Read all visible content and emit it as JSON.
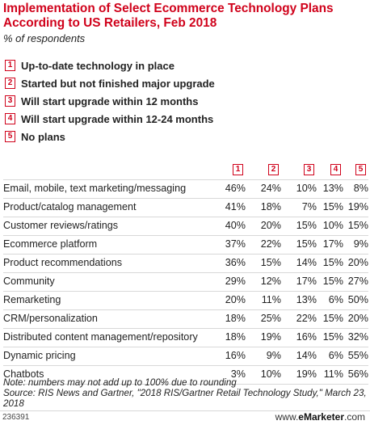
{
  "title": "Implementation of Select Ecommerce Technology Plans According to US Retailers, Feb 2018",
  "subtitle": "% of respondents",
  "legend": [
    {
      "num": "1",
      "label": "Up-to-date technology in place"
    },
    {
      "num": "2",
      "label": "Started but not finished major upgrade"
    },
    {
      "num": "3",
      "label": "Will start upgrade within 12 months"
    },
    {
      "num": "4",
      "label": "Will start upgrade within 12-24 months"
    },
    {
      "num": "5",
      "label": "No plans"
    }
  ],
  "chart_data": {
    "type": "table",
    "columns": [
      "1",
      "2",
      "3",
      "4",
      "5"
    ],
    "rows": [
      {
        "label": "Email, mobile, text marketing/messaging",
        "values": [
          "46%",
          "24%",
          "10%",
          "13%",
          "8%"
        ]
      },
      {
        "label": "Product/catalog management",
        "values": [
          "41%",
          "18%",
          "7%",
          "15%",
          "19%"
        ]
      },
      {
        "label": "Customer reviews/ratings",
        "values": [
          "40%",
          "20%",
          "15%",
          "10%",
          "15%"
        ]
      },
      {
        "label": "Ecommerce platform",
        "values": [
          "37%",
          "22%",
          "15%",
          "17%",
          "9%"
        ]
      },
      {
        "label": "Product recommendations",
        "values": [
          "36%",
          "15%",
          "14%",
          "15%",
          "20%"
        ]
      },
      {
        "label": "Community",
        "values": [
          "29%",
          "12%",
          "17%",
          "15%",
          "27%"
        ]
      },
      {
        "label": "Remarketing",
        "values": [
          "20%",
          "11%",
          "13%",
          "6%",
          "50%"
        ]
      },
      {
        "label": "CRM/personalization",
        "values": [
          "18%",
          "25%",
          "22%",
          "15%",
          "20%"
        ]
      },
      {
        "label": "Distributed content management/repository",
        "values": [
          "18%",
          "19%",
          "16%",
          "15%",
          "32%"
        ]
      },
      {
        "label": "Dynamic pricing",
        "values": [
          "16%",
          "9%",
          "14%",
          "6%",
          "55%"
        ]
      },
      {
        "label": "Chatbots",
        "values": [
          "3%",
          "10%",
          "19%",
          "11%",
          "56%"
        ]
      }
    ]
  },
  "note": "Note: numbers may not add up to 100% due to rounding",
  "source": "Source: RIS News and Gartner, \"2018 RIS/Gartner Retail Technology Study,\" March 23, 2018",
  "footer": {
    "id": "236391",
    "brand_prefix": "www.",
    "brand_bold": "eMarketer",
    "brand_suffix": ".com"
  },
  "colors": {
    "accent": "#d0021b"
  }
}
